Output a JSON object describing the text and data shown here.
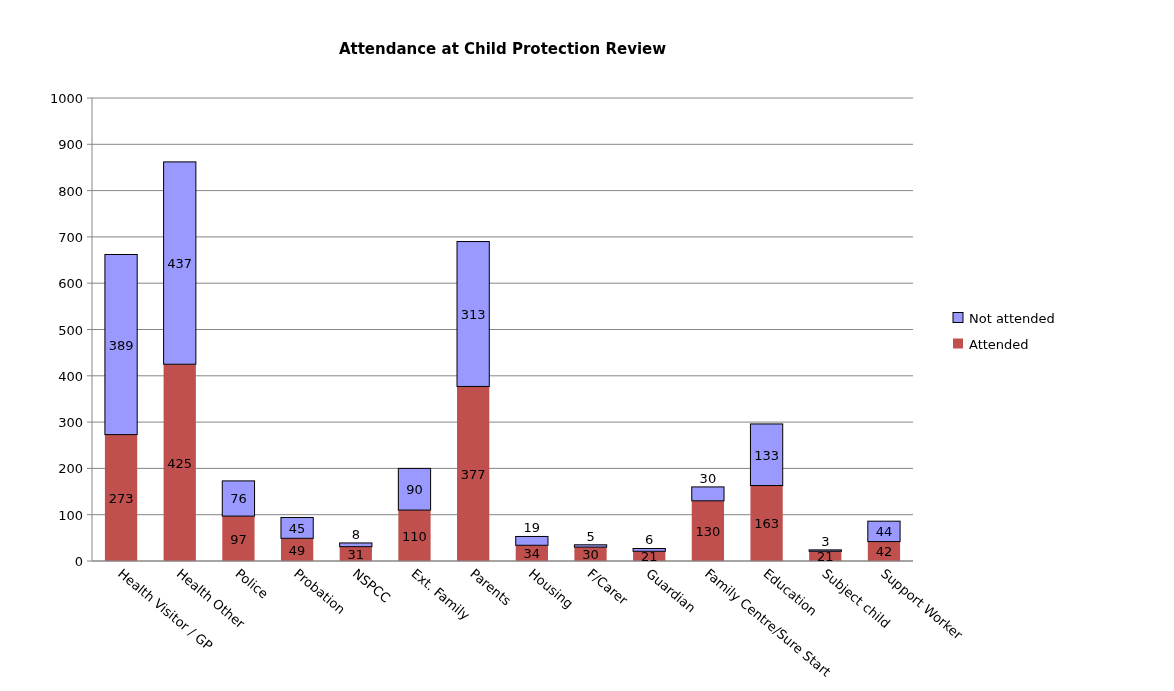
{
  "chart_data": {
    "type": "bar",
    "title": "Attendance at Child Protection Review",
    "stacked": true,
    "grid": "y",
    "legend": "right",
    "data_labels": true,
    "categories": [
      "Health Visitor / GP",
      "Health Other",
      "Police",
      "Probation",
      "NSPCC",
      "Ext. Family",
      "Parents",
      "Housing",
      "F/Carer",
      "Guardian",
      "Family Centre/Sure Start",
      "Education",
      "Subject child",
      "Support Worker"
    ],
    "series": [
      {
        "name": "Attended",
        "color": "#c0504d",
        "values": [
          273,
          425,
          97,
          49,
          31,
          110,
          377,
          34,
          30,
          21,
          130,
          163,
          21,
          42
        ]
      },
      {
        "name": "Not attended",
        "color": "#9999ff",
        "values": [
          389,
          437,
          76,
          45,
          8,
          90,
          313,
          19,
          5,
          6,
          30,
          133,
          3,
          44
        ]
      }
    ],
    "ylim": [
      0,
      1000
    ],
    "yticks": [
      0,
      100,
      200,
      300,
      400,
      500,
      600,
      700,
      800,
      900,
      1000
    ]
  }
}
